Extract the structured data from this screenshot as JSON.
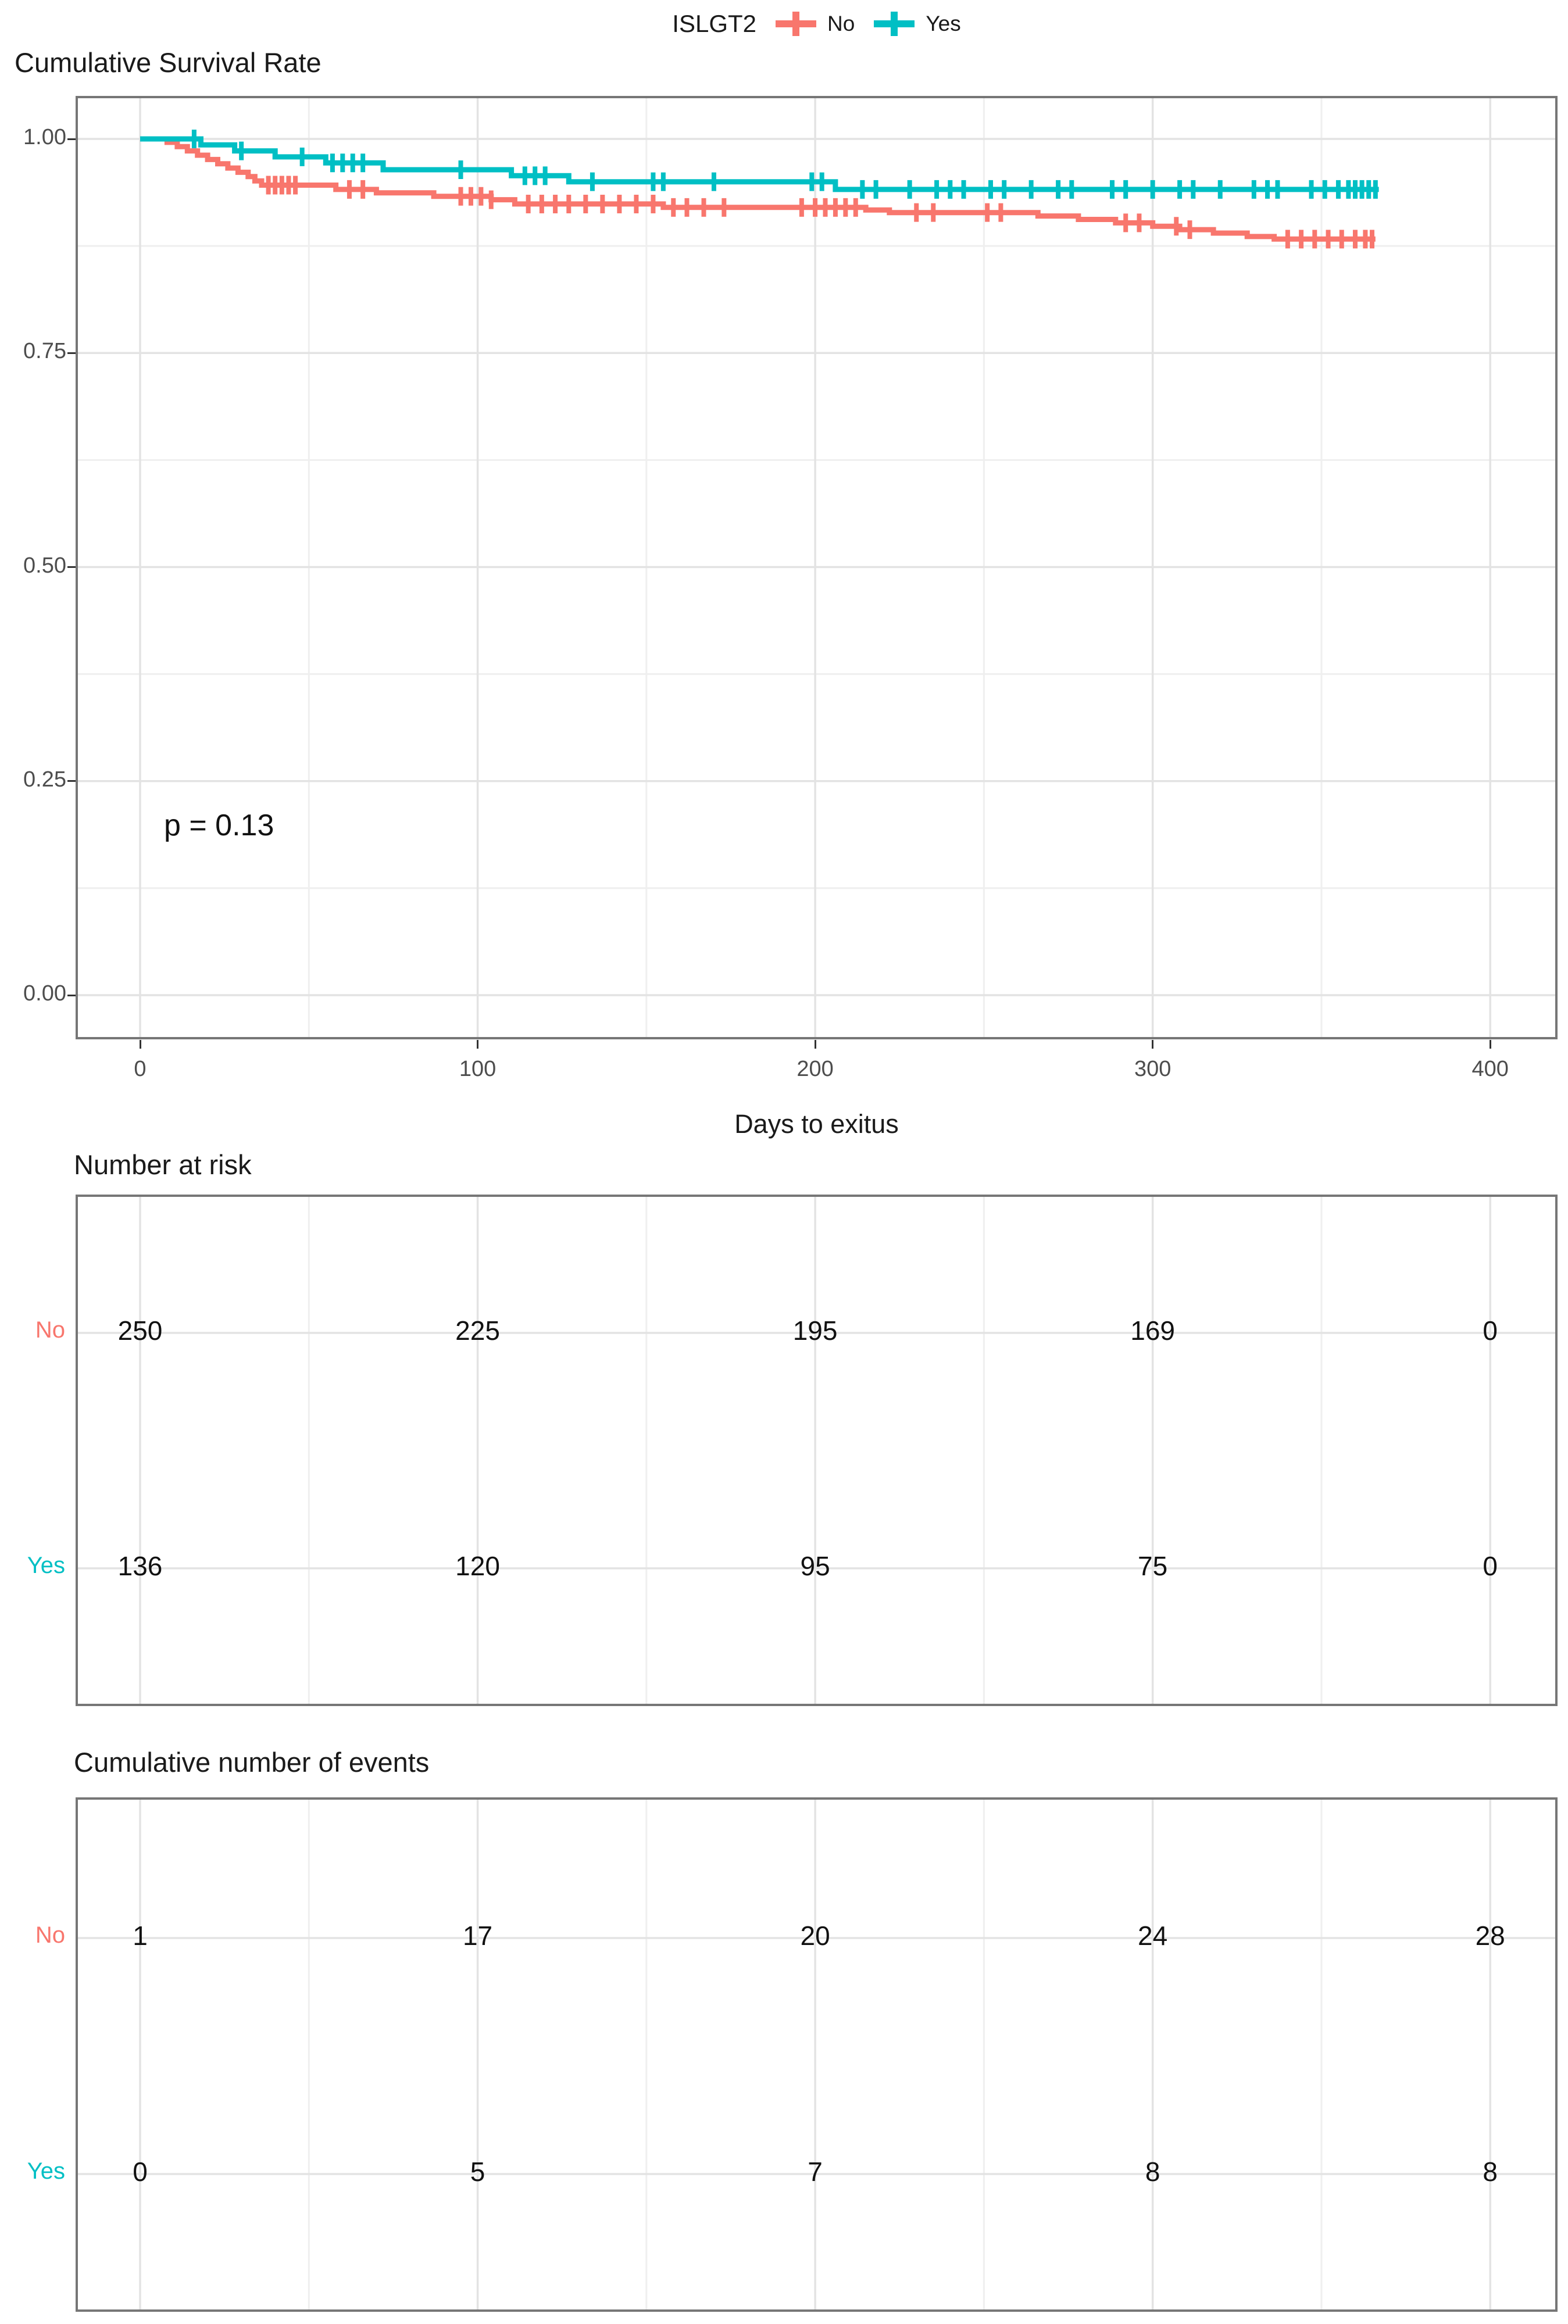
{
  "colors": {
    "no": "#F8766D",
    "yes": "#00BFC4",
    "grid_major": "#E3E3E3",
    "grid_minor": "#EFEFEF",
    "panel_border": "#767676",
    "tick_label": "#4d4d4d",
    "text": "#1a1a1a"
  },
  "legend": {
    "title": "ISLGT2",
    "items": [
      {
        "label": "No",
        "color": "#F8766D"
      },
      {
        "label": "Yes",
        "color": "#00BFC4"
      }
    ]
  },
  "plot": {
    "title": "Cumulative Survival Rate",
    "p_value": "p = 0.13",
    "x_title": "Days to exitus",
    "y_tick_labels": [
      "1.00",
      "0.75",
      "0.50",
      "0.25",
      "0.00"
    ],
    "y_tick_values": [
      1.0,
      0.75,
      0.5,
      0.25,
      0.0
    ],
    "x_tick_labels": [
      "0",
      "100",
      "200",
      "300",
      "400"
    ],
    "x_tick_values": [
      0,
      100,
      200,
      300,
      400
    ]
  },
  "chart_data": {
    "type": "line",
    "subtype": "kaplan_meier_step",
    "title": "Cumulative Survival Rate",
    "xlabel": "Days to exitus",
    "ylabel": "Cumulative Survival Rate",
    "xlim": [
      -19,
      420
    ],
    "ylim": [
      -0.05,
      1.05
    ],
    "x_ticks": [
      0,
      100,
      200,
      300,
      400
    ],
    "x_minor_ticks": [
      50,
      150,
      250,
      350
    ],
    "y_ticks": [
      0,
      0.25,
      0.5,
      0.75,
      1.0
    ],
    "y_minor_ticks": [
      0.125,
      0.375,
      0.625,
      0.875
    ],
    "grid": true,
    "legend_position": "top",
    "legend_title": "ISLGT2",
    "p_value_annotation": {
      "text": "p = 0.13",
      "x": 28,
      "y": 0.2
    },
    "series": [
      {
        "name": "No",
        "color": "#F8766D",
        "steps": [
          [
            0,
            1.0
          ],
          [
            8,
            0.996
          ],
          [
            11,
            0.991
          ],
          [
            14,
            0.986
          ],
          [
            17,
            0.981
          ],
          [
            20,
            0.976
          ],
          [
            23,
            0.971
          ],
          [
            26,
            0.966
          ],
          [
            29,
            0.961
          ],
          [
            32,
            0.956
          ],
          [
            34,
            0.951
          ],
          [
            36,
            0.946
          ],
          [
            58,
            0.941
          ],
          [
            70,
            0.937
          ],
          [
            87,
            0.933
          ],
          [
            104,
            0.929
          ],
          [
            111,
            0.924
          ],
          [
            155,
            0.92
          ],
          [
            215,
            0.917
          ],
          [
            222,
            0.914
          ],
          [
            266,
            0.91
          ],
          [
            278,
            0.906
          ],
          [
            289,
            0.902
          ],
          [
            300,
            0.898
          ],
          [
            308,
            0.894
          ],
          [
            318,
            0.89
          ],
          [
            328,
            0.886
          ],
          [
            336,
            0.883
          ],
          [
            366,
            0.883
          ]
        ],
        "censor_times": [
          38,
          40,
          42,
          44,
          46,
          62,
          66,
          95,
          98,
          101,
          104,
          115,
          119,
          123,
          127,
          132,
          137,
          142,
          147,
          152,
          158,
          162,
          167,
          173,
          196,
          200,
          203,
          206,
          209,
          212,
          230,
          235,
          251,
          255,
          292,
          296,
          307,
          311,
          340,
          344,
          348,
          352,
          356,
          360,
          363,
          365
        ]
      },
      {
        "name": "Yes",
        "color": "#00BFC4",
        "steps": [
          [
            0,
            1.0
          ],
          [
            18,
            0.993
          ],
          [
            28,
            0.986
          ],
          [
            40,
            0.979
          ],
          [
            55,
            0.972
          ],
          [
            72,
            0.964
          ],
          [
            110,
            0.957
          ],
          [
            127,
            0.95
          ],
          [
            206,
            0.941
          ],
          [
            367,
            0.941
          ]
        ],
        "censor_times": [
          16,
          30,
          48,
          57,
          60,
          63,
          66,
          95,
          114,
          117,
          120,
          134,
          152,
          155,
          170,
          199,
          202,
          214,
          218,
          228,
          236,
          240,
          244,
          252,
          256,
          264,
          272,
          276,
          288,
          292,
          300,
          308,
          312,
          320,
          330,
          334,
          337,
          347,
          351,
          355,
          358,
          360,
          362,
          364,
          366
        ]
      }
    ]
  },
  "risk_table": {
    "title": "Number at risk",
    "time_points": [
      0,
      100,
      200,
      300,
      400
    ],
    "rows": [
      {
        "label": "No",
        "color": "#F8766D",
        "values": [
          250,
          225,
          195,
          169,
          0
        ]
      },
      {
        "label": "Yes",
        "color": "#00BFC4",
        "values": [
          136,
          120,
          95,
          75,
          0
        ]
      }
    ]
  },
  "events_table": {
    "title": "Cumulative number of events",
    "time_points": [
      0,
      100,
      200,
      300,
      400
    ],
    "rows": [
      {
        "label": "No",
        "color": "#F8766D",
        "values": [
          1,
          17,
          20,
          24,
          28
        ]
      },
      {
        "label": "Yes",
        "color": "#00BFC4",
        "values": [
          0,
          5,
          7,
          8,
          8
        ]
      }
    ]
  }
}
